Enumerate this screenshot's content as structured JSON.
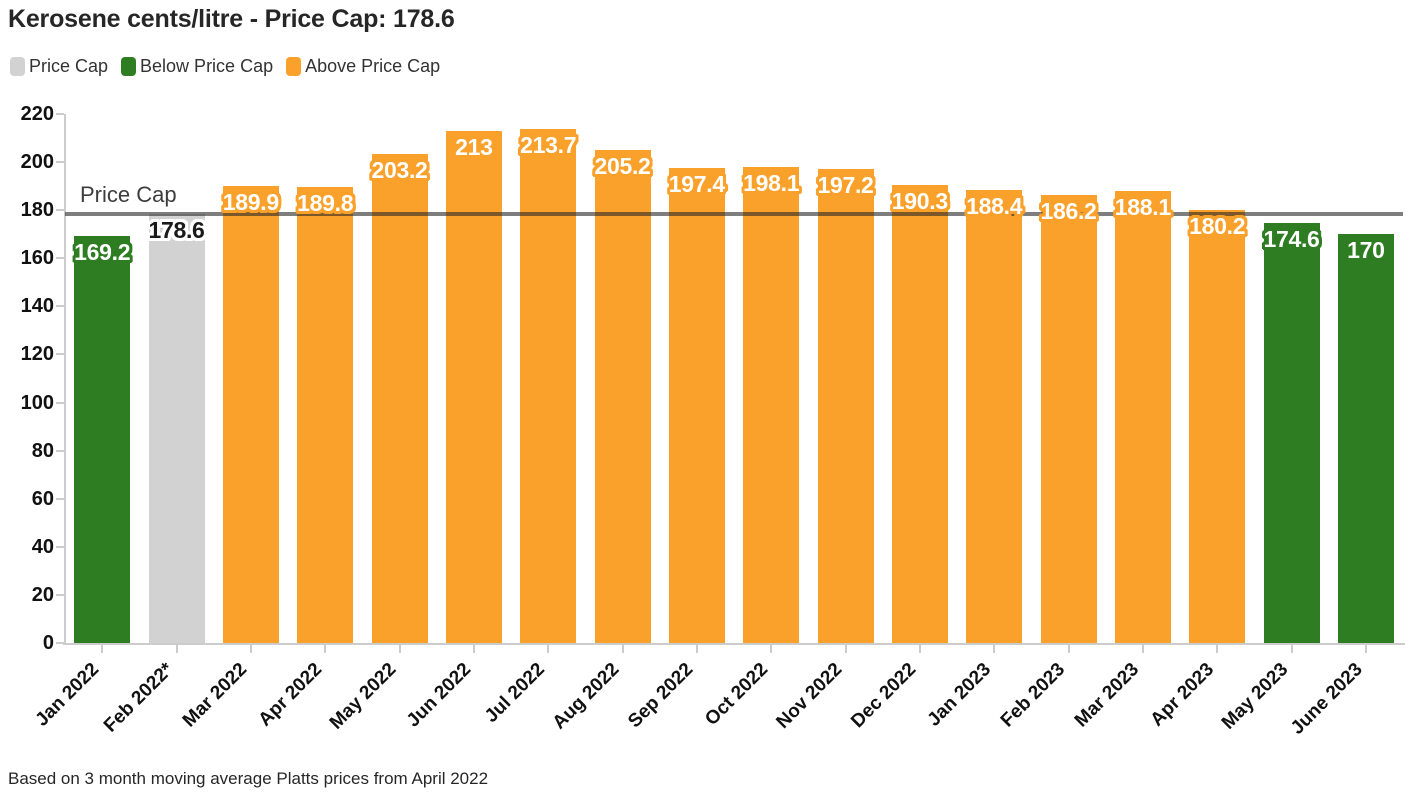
{
  "footnote": "Based on 3 month moving average Platts prices from April 2022",
  "annotations": {
    "price_cap_label": "Price Cap"
  },
  "colors": {
    "above": "#f9a12b",
    "below": "#2e7d22",
    "price_cap_bar": "#d2d2d2",
    "cap_line_color": "#282828",
    "cap_line_opacity": 0.6,
    "axis": "#cccccc",
    "cap_bar_label_text": "#1a1a1a",
    "bar_label_text": "#ffffff"
  },
  "legend": [
    {
      "label": "Price Cap",
      "color": "#d2d2d2"
    },
    {
      "label": "Below Price Cap",
      "color": "#2e7d22"
    },
    {
      "label": "Above Price Cap",
      "color": "#f9a12b"
    }
  ],
  "chart_data": {
    "type": "bar",
    "title": "Kerosene cents/litre - Price Cap: 178.6",
    "categories": [
      "Jan 2022",
      "Feb 2022*",
      "Mar 2022",
      "Apr 2022",
      "May 2022",
      "Jun 2022",
      "Jul 2022",
      "Aug 2022",
      "Sep 2022",
      "Oct 2022",
      "Nov 2022",
      "Dec 2022",
      "Jan 2023",
      "Feb 2023",
      "Mar 2023",
      "Apr 2023",
      "May 2023",
      "June 2023"
    ],
    "values": [
      169.2,
      178.6,
      189.9,
      189.8,
      203.2,
      213,
      213.7,
      205.2,
      197.4,
      198.1,
      197.2,
      190.3,
      188.4,
      186.2,
      188.1,
      180.2,
      174.6,
      170
    ],
    "statuses": [
      "below",
      "cap",
      "above",
      "above",
      "above",
      "above",
      "above",
      "above",
      "above",
      "above",
      "above",
      "above",
      "above",
      "above",
      "above",
      "above",
      "below",
      "below"
    ],
    "price_cap_value": 178.6,
    "xlabel": "",
    "ylabel": "",
    "ylim": [
      0,
      220
    ],
    "ytick_step": 20,
    "grid": false,
    "legend_position": "top-left"
  }
}
